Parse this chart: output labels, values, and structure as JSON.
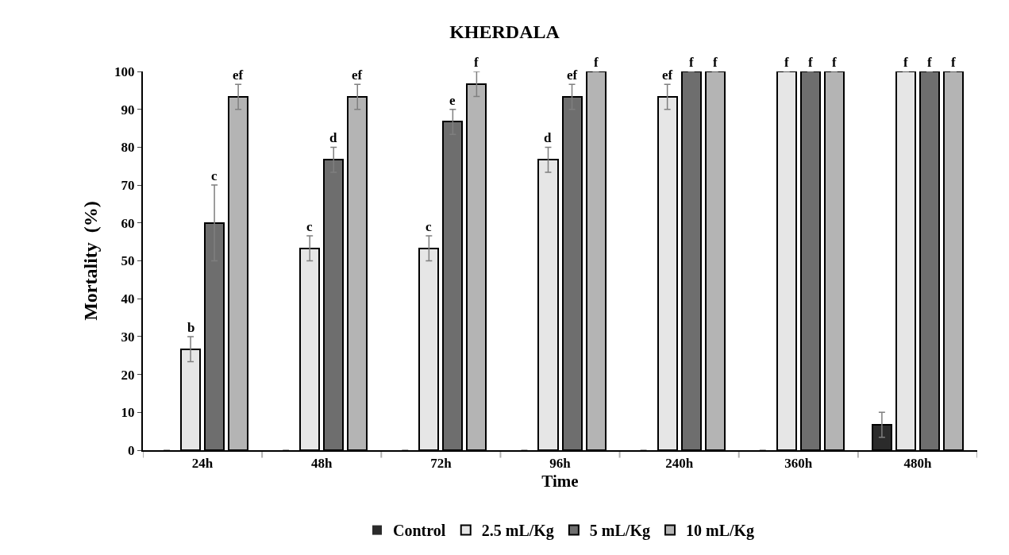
{
  "chart_data": {
    "type": "bar",
    "title": "KHERDALA",
    "xlabel": "Time",
    "ylabel": "Mortality  (%)",
    "categories": [
      "24h",
      "48h",
      "72h",
      "96h",
      "240h",
      "360h",
      "480h"
    ],
    "series": [
      {
        "name": "Control",
        "color": "#2b2b2b",
        "values": [
          0,
          0,
          0,
          0,
          0,
          0,
          6.7
        ],
        "errors": [
          null,
          null,
          null,
          null,
          null,
          null,
          3.3
        ],
        "value_labels": [
          null,
          null,
          null,
          null,
          null,
          null,
          null
        ]
      },
      {
        "name": "2.5 mL/Kg",
        "color": "#e6e6e6",
        "values": [
          26.7,
          53.3,
          53.3,
          76.7,
          93.3,
          100,
          100
        ],
        "errors": [
          3.3,
          3.3,
          3.3,
          3.3,
          3.3,
          null,
          null
        ],
        "value_labels": [
          "b",
          "c",
          "c",
          "d",
          "ef",
          "f",
          "f"
        ]
      },
      {
        "name": "5 mL/Kg",
        "color": "#6e6e6e",
        "values": [
          60,
          76.7,
          86.7,
          93.3,
          100,
          100,
          100
        ],
        "errors": [
          10,
          3.3,
          3.3,
          3.3,
          null,
          null,
          null
        ],
        "value_labels": [
          "c",
          "d",
          "e",
          "ef",
          "f",
          "f",
          "f"
        ]
      },
      {
        "name": "10 mL/Kg",
        "color": "#b4b4b4",
        "values": [
          93.3,
          93.3,
          96.7,
          100,
          100,
          100,
          100
        ],
        "errors": [
          3.3,
          3.3,
          3.3,
          null,
          null,
          null,
          null
        ],
        "value_labels": [
          "ef",
          "ef",
          "f",
          "f",
          "f",
          "f",
          "f"
        ]
      }
    ],
    "ylim": [
      0,
      100
    ],
    "yticks": [
      0,
      10,
      20,
      30,
      40,
      50,
      60,
      70,
      80,
      90,
      100
    ],
    "grid": false,
    "legend": "bottom"
  }
}
